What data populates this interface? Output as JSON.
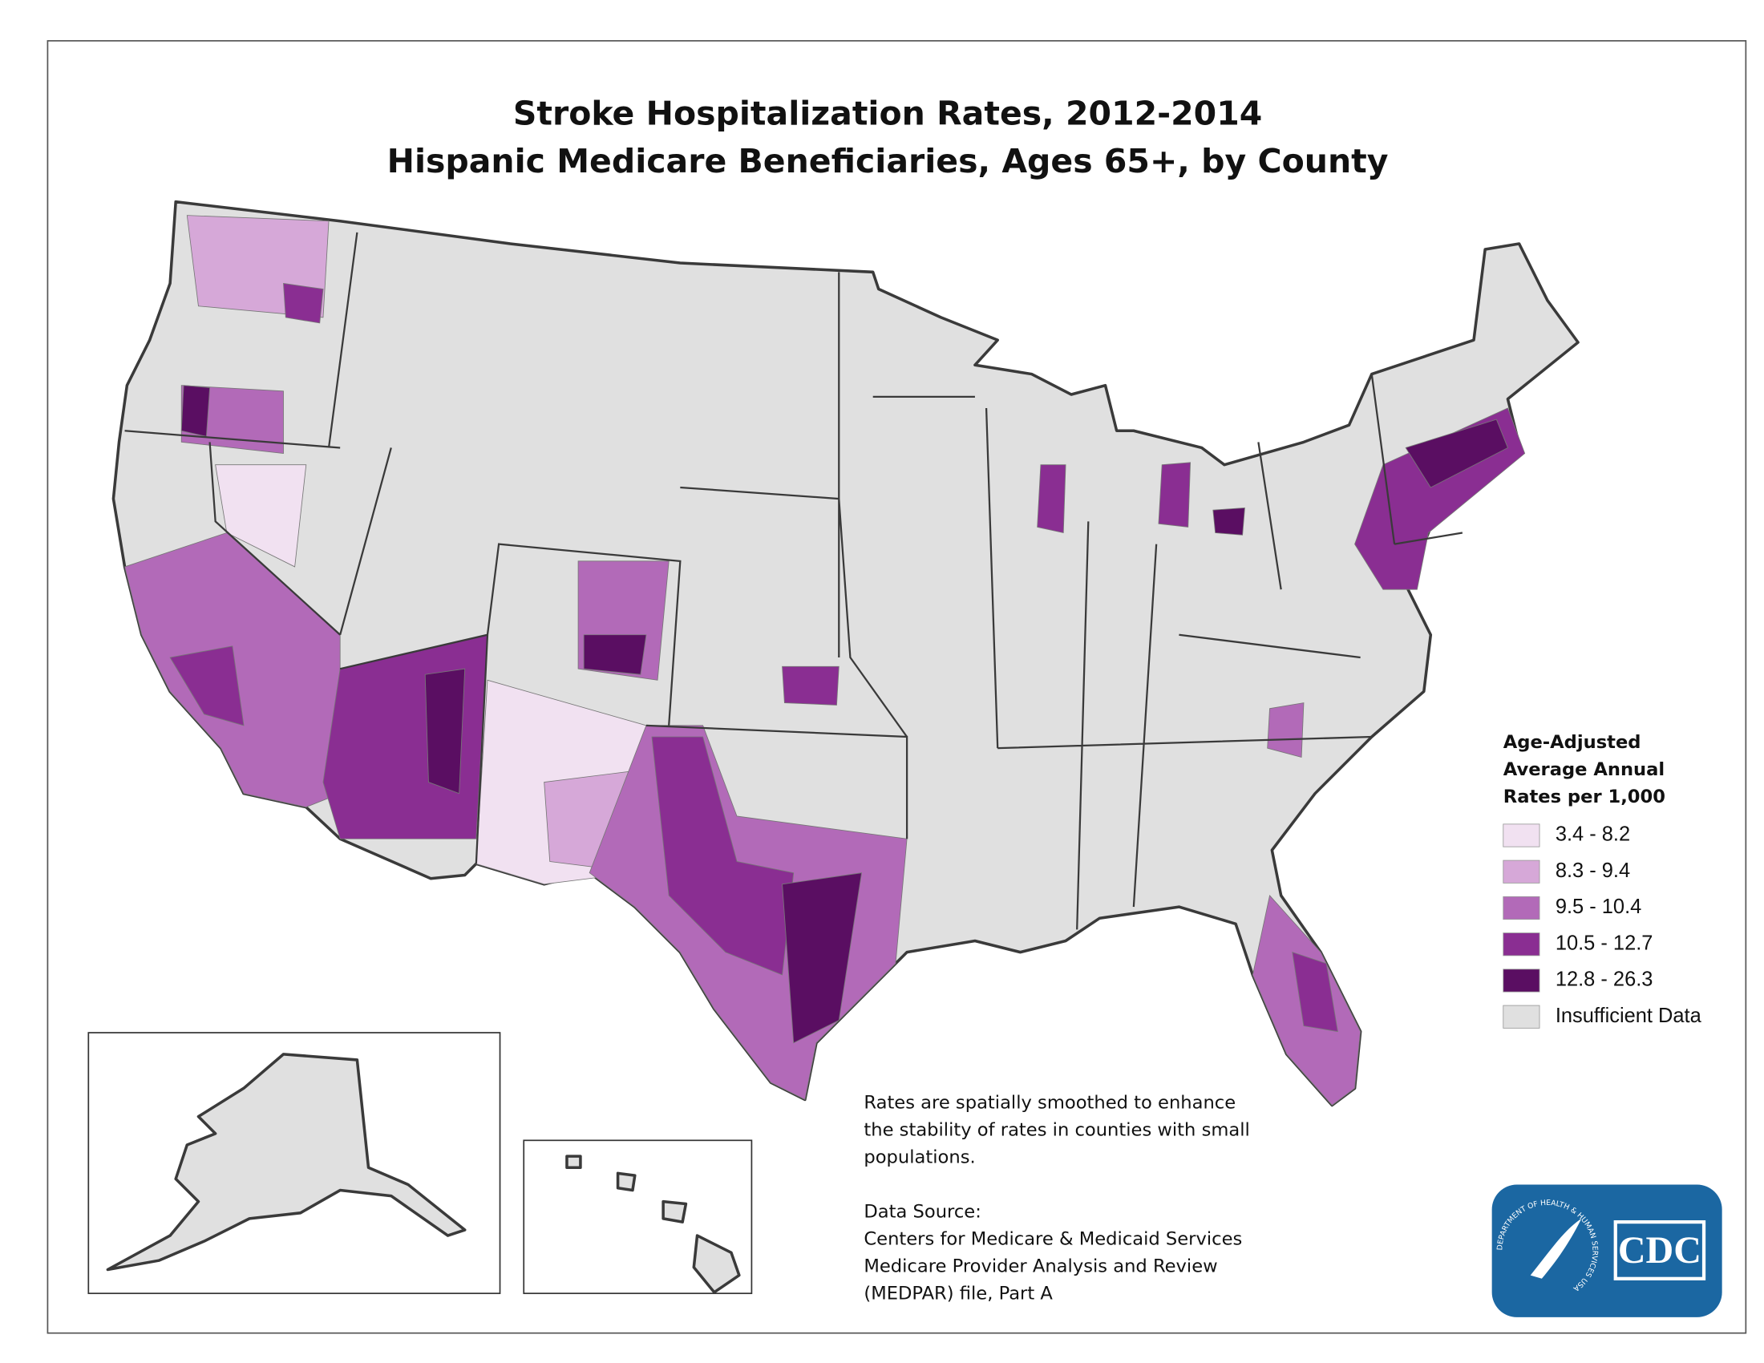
{
  "header": {
    "title_line1": "Stroke Hospitalization Rates, 2012-2014",
    "title_line2": "Hispanic Medicare Beneficiaries, Ages 65+, by County"
  },
  "legend": {
    "title": [
      "Age-Adjusted",
      "Average Annual",
      "Rates per 1,000"
    ],
    "items": [
      {
        "label": "3.4 - 8.2",
        "color": "#f1e1f1"
      },
      {
        "label": "8.3 - 9.4",
        "color": "#d6a8d8"
      },
      {
        "label": "9.5 - 10.4",
        "color": "#b26ab8"
      },
      {
        "label": "10.5 - 12.7",
        "color": "#8a2e92"
      },
      {
        "label": "12.8 - 26.3",
        "color": "#5a0e62"
      },
      {
        "label": "Insufficient Data",
        "color": "#e0e0e0"
      }
    ]
  },
  "notes": {
    "smoothing": [
      "Rates are spatially smoothed to enhance",
      "the stability of rates in counties with small",
      "populations."
    ],
    "source": [
      "Data Source:",
      "Centers for Medicare & Medicaid Services",
      "Medicare Provider Analysis and Review",
      "(MEDPAR) file, Part A"
    ]
  },
  "logo": {
    "seal_text": "DEPARTMENT OF HEALTH & HUMAN SERVICES USA",
    "agency": "CDC"
  }
}
